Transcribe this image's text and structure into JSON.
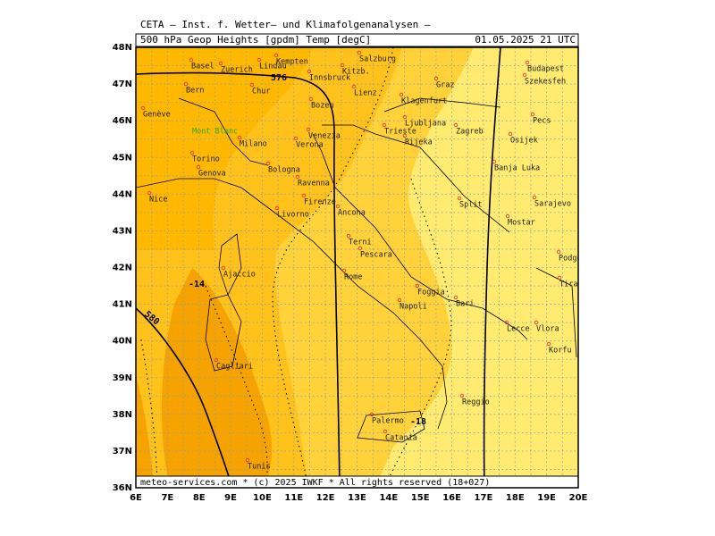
{
  "header": {
    "title": "CETA — Inst. f. Wetter— und Klimafolgenanalysen —",
    "field": "500 hPa Geop Heights [gpdm] Temp [degC]",
    "valid": "01.05.2025 21 UTC"
  },
  "footer": "meteo-services.com * (c) 2025 IWKF * All rights reserved (18+027)",
  "lat_labels": [
    "48N",
    "47N",
    "46N",
    "45N",
    "44N",
    "43N",
    "42N",
    "41N",
    "40N",
    "39N",
    "38N",
    "37N",
    "36N"
  ],
  "lon_labels": [
    "6E",
    "7E",
    "8E",
    "9E",
    "10E",
    "11E",
    "12E",
    "13E",
    "14E",
    "15E",
    "16E",
    "17E",
    "18E",
    "19E",
    "20E"
  ],
  "contour_labels": [
    "576",
    "580",
    "-14",
    "-18"
  ],
  "cities": [
    "Basel",
    "Zuerich",
    "Lindau",
    "Kempten",
    "Bern",
    "Chur",
    "Innsbruck",
    "Kitzb.",
    "Salzburg",
    "Lienz",
    "Bozen",
    "Genève",
    "Mont Blanc",
    "Milano",
    "Verona",
    "Venezia",
    "Trieste",
    "Klagenfurt",
    "Ljubljana",
    "Graz",
    "Rijeka",
    "Zagreb",
    "Torino",
    "Genova",
    "Bologna",
    "Ravenna",
    "Firenze",
    "Nice",
    "Livorno",
    "Ancona",
    "Split",
    "Mostar",
    "Sarajevo",
    "Banja Luka",
    "Osijek",
    "Budapest",
    "Szekesfeh",
    "Pecs",
    "Podgorica",
    "Tirana",
    "Vlora",
    "Korfu",
    "Terni",
    "Pescara",
    "Rome",
    "Ajaccio",
    "Foggia",
    "Bari",
    "Napoli",
    "Lecce",
    "Cagliari",
    "Palermo",
    "Reggio",
    "Catania",
    "Tunis"
  ]
}
